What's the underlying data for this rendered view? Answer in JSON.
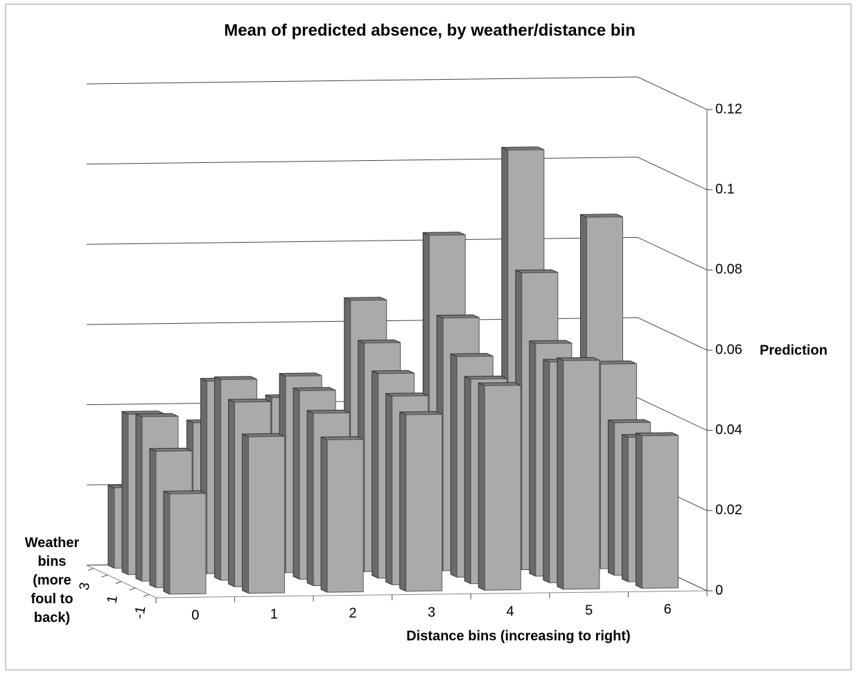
{
  "chart_data": {
    "type": "bar3d",
    "title": "Mean of predicted absence, by weather/distance bin",
    "x_label": "Distance bins (increasing to right)",
    "y_label": "Prediction",
    "z_label": "Weather bins (more foul to back)",
    "categories": [
      "0",
      "1",
      "2",
      "3",
      "4",
      "5",
      "6"
    ],
    "series": [
      {
        "name": "-1",
        "values": [
          0.025,
          0.039,
          0.038,
          0.044,
          0.051,
          0.057,
          0.038
        ]
      },
      {
        "name": null,
        "values": [
          0.034,
          0.046,
          0.043,
          0.047,
          0.051,
          0.055,
          0.036
        ]
      },
      {
        "name": "1",
        "values": [
          0.041,
          0.05,
          0.047,
          0.051,
          0.055,
          0.058,
          0.038
        ]
      },
      {
        "name": null,
        "values": [
          0.04,
          0.048,
          0.049,
          0.057,
          0.063,
          0.074,
          0.051
        ]
      },
      {
        "name": "3",
        "values": [
          0.02,
          0.036,
          0.042,
          0.066,
          0.082,
          0.103,
          0.086
        ]
      }
    ],
    "color": "#aaaaaa",
    "ylim": [
      0,
      0.12
    ],
    "yticks": [
      0,
      0.02,
      0.04,
      0.06,
      0.08,
      0.1,
      0.12
    ],
    "grid": true
  }
}
